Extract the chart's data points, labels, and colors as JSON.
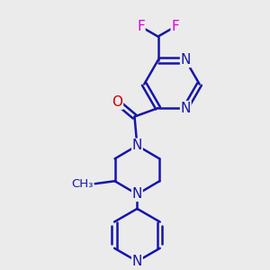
{
  "background_color": "#ebebeb",
  "bond_color": "#1515aa",
  "bond_width": 1.8,
  "atom_colors": {
    "N": "#1515aa",
    "O": "#cc0000",
    "F": "#dd00dd"
  },
  "font_size": 11,
  "fig_size": [
    3.0,
    3.0
  ],
  "dpi": 100
}
